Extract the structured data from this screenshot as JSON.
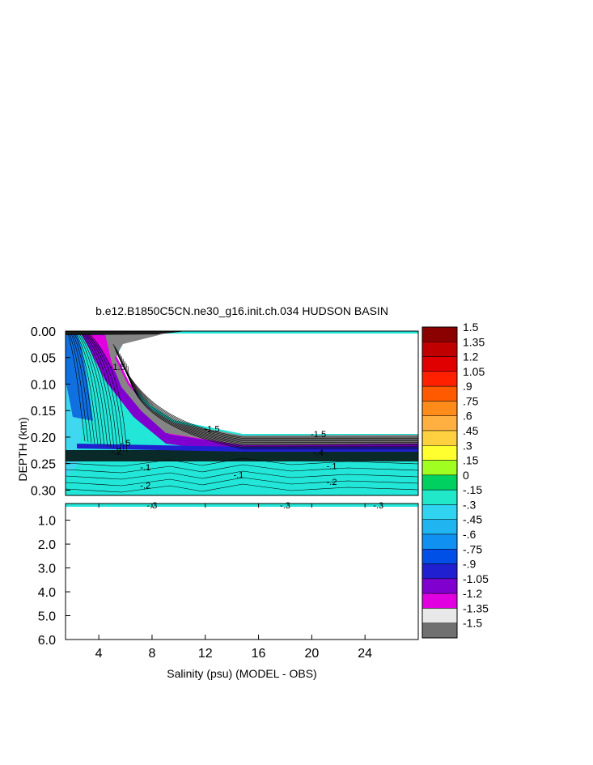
{
  "chart_data": {
    "type": "contour",
    "title": "b.e12.B1850C5CN.ne30_g16.init.ch.034 HUDSON BASIN",
    "xlabel": "Salinity (psu) (MODEL - OBS)",
    "ylabel": "DEPTH (km)",
    "x_ticks": [
      "4",
      "8",
      "12",
      "16",
      "20",
      "24"
    ],
    "x_tick_values": [
      4,
      8,
      12,
      16,
      20,
      24
    ],
    "xlim": [
      1.5,
      28
    ],
    "upper_panel": {
      "ylim": [
        0.0,
        0.31
      ],
      "y_ticks": [
        "0.00",
        "0.05",
        "0.10",
        "0.15",
        "0.20",
        "0.25",
        "0.30"
      ],
      "y_tick_values": [
        0.0,
        0.05,
        0.1,
        0.15,
        0.2,
        0.25,
        0.3
      ]
    },
    "lower_panel": {
      "ylim": [
        0.3,
        6.0
      ],
      "y_ticks": [
        "1.0",
        "2.0",
        "3.0",
        "4.0",
        "5.0",
        "6.0"
      ],
      "y_tick_values": [
        1.0,
        2.0,
        3.0,
        4.0,
        5.0,
        6.0
      ]
    },
    "colorbar": {
      "labels": [
        "1.5",
        "1.35",
        "1.2",
        "1.05",
        ".9",
        ".75",
        ".6",
        ".45",
        ".3",
        ".15",
        "0",
        "-.15",
        "-.3",
        "-.45",
        "-.6",
        "-.75",
        "-.9",
        "-1.05",
        "-1.2",
        "-1.35",
        "-1.5"
      ],
      "values": [
        1.5,
        1.35,
        1.2,
        1.05,
        0.9,
        0.75,
        0.6,
        0.45,
        0.3,
        0.15,
        0,
        -0.15,
        -0.3,
        -0.45,
        -0.6,
        -0.75,
        -0.9,
        -1.05,
        -1.2,
        -1.35,
        -1.5
      ],
      "colors": [
        "#8b0000",
        "#c00000",
        "#e00000",
        "#ff2000",
        "#ff5a00",
        "#ff8c1a",
        "#ffb040",
        "#ffd040",
        "#ffff30",
        "#a0ff20",
        "#00d060",
        "#20e8c8",
        "#30d4f0",
        "#20b4f0",
        "#1090f0",
        "#0050e8",
        "#2020d0",
        "#8000d0",
        "#e000e0",
        "#e8e8e8",
        "#707070"
      ]
    },
    "contour_labels": [
      {
        "text": "-.1",
        "x": 21.5,
        "depth": 0.26
      },
      {
        "text": "-.2",
        "x": 21.5,
        "depth": 0.29
      },
      {
        "text": "-.1",
        "x": 7.5,
        "depth": 0.263
      },
      {
        "text": "-.2",
        "x": 7.5,
        "depth": 0.297
      },
      {
        "text": "-.1",
        "x": 14.5,
        "depth": 0.277
      },
      {
        "text": "-1.5",
        "x": 12.5,
        "depth": 0.19
      },
      {
        "text": "-1.5",
        "x": 20.5,
        "depth": 0.2
      },
      {
        "text": "-.4",
        "x": 20.5,
        "depth": 0.235
      },
      {
        "text": "-.5",
        "x": 6.0,
        "depth": 0.217
      },
      {
        "text": "-.2",
        "x": 5.3,
        "depth": 0.233
      },
      {
        "text": "-1.5",
        "x": 5.4,
        "depth": 0.073
      },
      {
        "text": "-.3",
        "x": 8.0,
        "depth": 0.35
      },
      {
        "text": "-.3",
        "x": 18.0,
        "depth": 0.35
      },
      {
        "text": "-.3",
        "x": 25.0,
        "depth": 0.35
      }
    ]
  }
}
